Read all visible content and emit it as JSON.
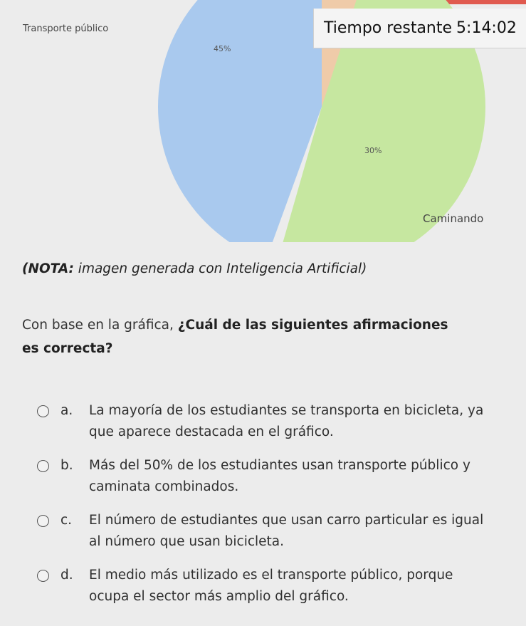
{
  "timer": {
    "label": "Tiempo restante",
    "value": "5:14:02"
  },
  "chart_data": {
    "type": "pie",
    "title": "",
    "slices": [
      {
        "label": "Transporte público",
        "value": 45,
        "color": "#a9c9ee"
      },
      {
        "label": "Caminando",
        "value": 30,
        "color": "#c6e7a0"
      }
    ],
    "visible_labels": {
      "transport": "Transporte público",
      "walk": "Caminando",
      "transport_pct": "45%",
      "walk_pct": "30%"
    },
    "other_visible_colors": [
      "#efcba9"
    ]
  },
  "note": {
    "prefix": "(NOTA:",
    "text": " imagen generada con Inteligencia Artificial)"
  },
  "question": {
    "intro": "Con base en la gráfica, ",
    "bold": "¿Cuál de las siguientes afirmaciones es correcta?"
  },
  "options": [
    {
      "letter": "a.",
      "text": "La mayoría de los estudiantes se transporta en bicicleta, ya que aparece destacada en el gráfico."
    },
    {
      "letter": "b.",
      "text": "Más del 50% de los estudiantes usan transporte público y caminata combinados."
    },
    {
      "letter": "c.",
      "text": "El número de estudiantes que usan carro particular es igual al número que usan bicicleta."
    },
    {
      "letter": "d.",
      "text": "El medio más utilizado es el transporte público, porque ocupa el sector más amplio del gráfico."
    }
  ]
}
